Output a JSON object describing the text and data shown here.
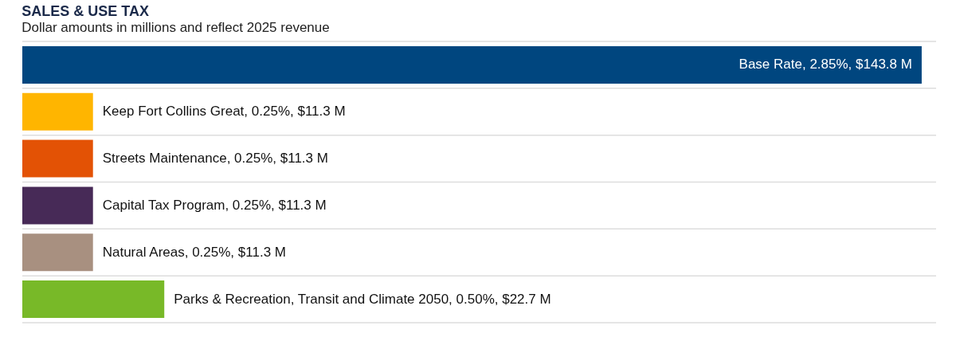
{
  "chart_data": {
    "type": "bar",
    "orientation": "horizontal",
    "title": "SALES & USE TAX",
    "subtitle": "Dollar amounts in millions and reflect 2025 revenue",
    "categories": [
      null,
      null,
      null,
      null,
      null,
      null
    ],
    "values": [
      143.8,
      11.3,
      11.3,
      11.3,
      11.3,
      22.7
    ],
    "value_labels": [
      "Base Rate, 2.85%, $143.8 M",
      "Keep Fort Collins Great, 0.25%, $11.3 M",
      "Streets Maintenance, 0.25%, $11.3 M",
      "Capital Tax Program, 0.25%, $11.3 M",
      "Natural Areas, 0.25%, $11.3 M",
      "Parks & Recreation, Transit and Climate 2050, 0.50%, $22.7 M"
    ],
    "colors": [
      "#00467f",
      "#ffb500",
      "#e35205",
      "#472a57",
      "#a89080",
      "#78b928"
    ],
    "grid": true
  }
}
